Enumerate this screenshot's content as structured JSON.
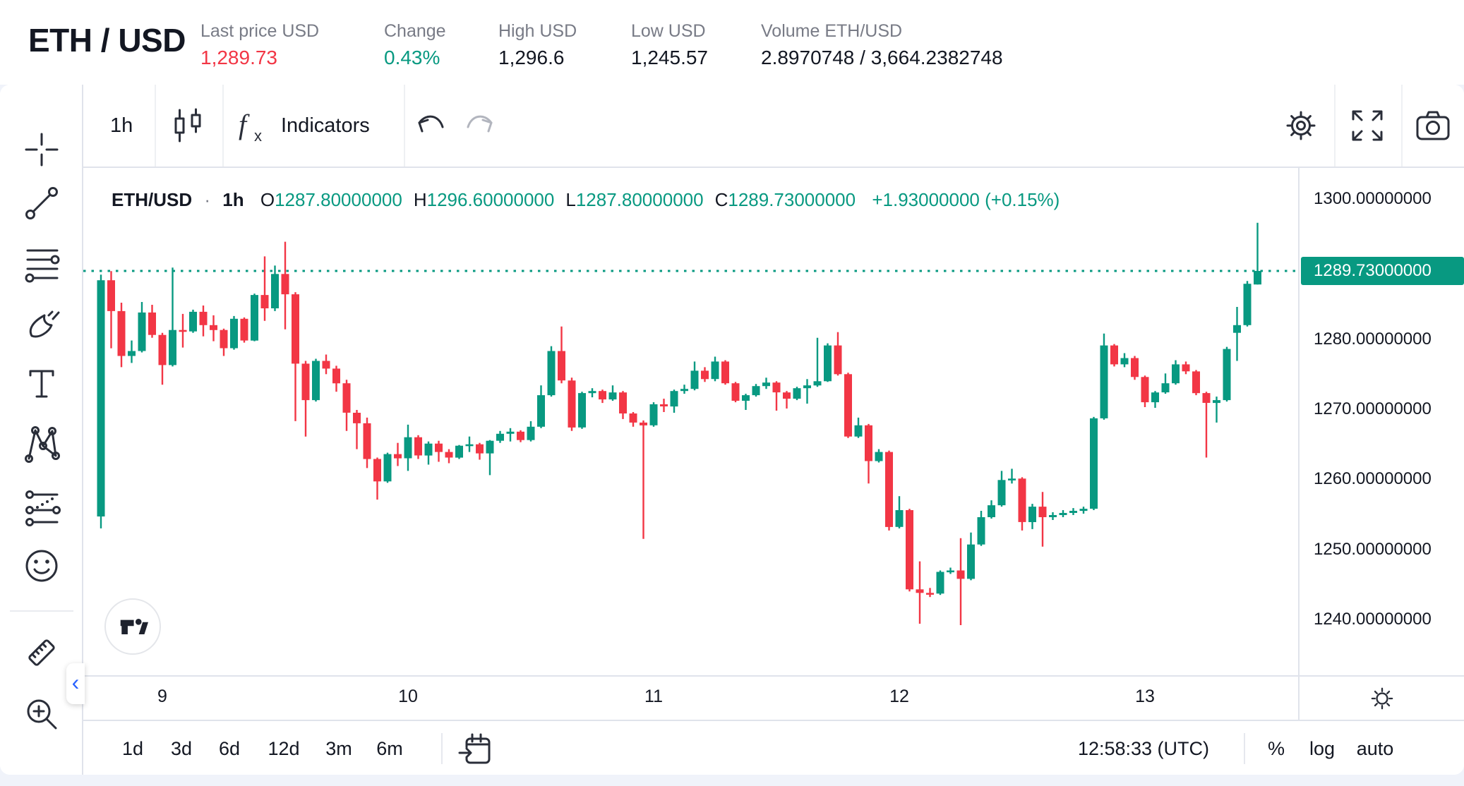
{
  "colors": {
    "up_green": "#089981",
    "down_red": "#f23645",
    "text_dark": "#131722",
    "text_gray": "#787b86",
    "text_disabled": "#b2b5be",
    "accent_blue": "#2962ff",
    "divider": "#e0e3eb",
    "page_background": "#f0f3fa",
    "last_price_badge_bg": "#089981"
  },
  "header": {
    "symbol": "ETH / USD",
    "stats": [
      {
        "label": "Last price USD",
        "value": "1,289.73",
        "tone": "red"
      },
      {
        "label": "Change",
        "value": "0.43%",
        "tone": "green"
      },
      {
        "label": "High USD",
        "value": "1,296.6",
        "tone": "dark"
      },
      {
        "label": "Low USD",
        "value": "1,245.57",
        "tone": "dark"
      },
      {
        "label": "Volume ETH/USD",
        "value": "2.8970748 / 3,664.2382748",
        "tone": "dark"
      }
    ]
  },
  "toolbar": {
    "interval_label": "1h",
    "indicators_label": "Indicators",
    "icons": [
      "candle-style-icon",
      "fx-icon",
      "undo-icon",
      "redo-icon",
      "settings-gear-icon",
      "fullscreen-icon",
      "camera-icon"
    ]
  },
  "sidebar_tools": [
    "crosshair",
    "trend-line",
    "horizontal-lines",
    "brush",
    "text",
    "xabcd-pattern",
    "projection",
    "emoji",
    "measure-ruler",
    "zoom-in"
  ],
  "legend": {
    "symbol": "ETH/USD",
    "separator": "·",
    "interval": "1h",
    "ohlc": [
      {
        "key": "O",
        "value": "1287.80000000"
      },
      {
        "key": "H",
        "value": "1296.60000000"
      },
      {
        "key": "L",
        "value": "1287.80000000"
      },
      {
        "key": "C",
        "value": "1289.73000000"
      }
    ],
    "change": "+1.93000000 (+0.15%)"
  },
  "price_axis": {
    "labels": [
      "1300.00000000",
      "1280.00000000",
      "1270.00000000",
      "1260.00000000",
      "1250.00000000",
      "1240.00000000"
    ],
    "label_prices": [
      1300,
      1280,
      1270,
      1260,
      1250,
      1240
    ],
    "last_price_label": "1289.73000000"
  },
  "time_axis": {
    "labels": [
      "9",
      "10",
      "11",
      "12",
      "13"
    ],
    "label_bar_index": [
      6,
      30,
      54,
      78,
      102
    ]
  },
  "bottom_toolbar": {
    "ranges": [
      "1d",
      "3d",
      "6d",
      "12d",
      "3m",
      "6m"
    ],
    "clock": "12:58:33 (UTC)",
    "scale_buttons": [
      "%",
      "log",
      "auto"
    ]
  },
  "chart_data": {
    "type": "candlestick",
    "symbol": "ETH/USD",
    "interval": "1h",
    "visible_price_range": [
      1232.0,
      1304.5
    ],
    "last_price": 1289.73,
    "last_price_line": true,
    "up_color": "#089981",
    "down_color": "#f23645",
    "candles": [
      [
        1254.7,
        1289.2,
        1253.0,
        1288.4
      ],
      [
        1288.4,
        1289.7,
        1278.7,
        1284.0
      ],
      [
        1284.0,
        1285.2,
        1276.0,
        1277.6
      ],
      [
        1277.6,
        1279.8,
        1276.6,
        1278.3
      ],
      [
        1278.3,
        1285.3,
        1278.1,
        1283.8
      ],
      [
        1283.8,
        1284.9,
        1280.2,
        1280.6
      ],
      [
        1280.6,
        1280.9,
        1273.5,
        1276.3
      ],
      [
        1276.3,
        1290.2,
        1276.1,
        1281.3
      ],
      [
        1281.3,
        1283.6,
        1278.8,
        1281.1
      ],
      [
        1281.1,
        1284.2,
        1280.9,
        1283.9
      ],
      [
        1283.9,
        1284.8,
        1280.4,
        1282.0
      ],
      [
        1282.0,
        1283.4,
        1279.7,
        1281.3
      ],
      [
        1281.3,
        1281.5,
        1277.6,
        1278.7
      ],
      [
        1278.7,
        1283.3,
        1278.5,
        1282.9
      ],
      [
        1282.9,
        1283.1,
        1279.5,
        1279.8
      ],
      [
        1279.8,
        1286.5,
        1279.7,
        1286.3
      ],
      [
        1286.3,
        1291.8,
        1282.6,
        1284.4
      ],
      [
        1284.4,
        1290.5,
        1284.0,
        1289.3
      ],
      [
        1289.3,
        1293.9,
        1281.4,
        1286.4
      ],
      [
        1286.4,
        1286.7,
        1268.3,
        1276.5
      ],
      [
        1276.5,
        1276.9,
        1266.1,
        1271.3
      ],
      [
        1271.3,
        1277.2,
        1271.1,
        1276.9
      ],
      [
        1276.9,
        1277.8,
        1275.0,
        1275.8
      ],
      [
        1275.8,
        1276.2,
        1272.5,
        1273.7
      ],
      [
        1273.7,
        1274.2,
        1266.9,
        1269.5
      ],
      [
        1269.5,
        1269.9,
        1264.3,
        1268.0
      ],
      [
        1268.0,
        1268.8,
        1261.6,
        1262.9
      ],
      [
        1262.9,
        1263.1,
        1257.1,
        1259.7
      ],
      [
        1259.7,
        1263.8,
        1259.5,
        1263.6
      ],
      [
        1263.6,
        1265.2,
        1261.9,
        1263.0
      ],
      [
        1263.0,
        1267.8,
        1261.2,
        1266.0
      ],
      [
        1266.0,
        1266.3,
        1262.9,
        1263.4
      ],
      [
        1263.4,
        1265.4,
        1262.1,
        1265.1
      ],
      [
        1265.1,
        1265.5,
        1262.5,
        1263.9
      ],
      [
        1263.9,
        1264.3,
        1262.3,
        1263.1
      ],
      [
        1263.1,
        1264.9,
        1262.9,
        1264.8
      ],
      [
        1264.8,
        1266.1,
        1263.9,
        1265.0
      ],
      [
        1265.0,
        1265.2,
        1262.8,
        1263.7
      ],
      [
        1263.7,
        1265.6,
        1260.6,
        1265.5
      ],
      [
        1265.5,
        1266.9,
        1265.2,
        1266.5
      ],
      [
        1266.5,
        1267.3,
        1265.4,
        1266.8
      ],
      [
        1266.8,
        1267.0,
        1265.3,
        1265.6
      ],
      [
        1265.6,
        1268.3,
        1265.4,
        1267.5
      ],
      [
        1267.5,
        1273.4,
        1267.3,
        1272.0
      ],
      [
        1272.0,
        1279.0,
        1271.8,
        1278.3
      ],
      [
        1278.3,
        1281.8,
        1273.7,
        1274.1
      ],
      [
        1274.1,
        1274.5,
        1266.9,
        1267.4
      ],
      [
        1267.4,
        1272.5,
        1267.2,
        1272.3
      ],
      [
        1272.3,
        1273.0,
        1271.7,
        1272.6
      ],
      [
        1272.6,
        1272.8,
        1270.9,
        1271.4
      ],
      [
        1271.4,
        1273.4,
        1271.2,
        1272.4
      ],
      [
        1272.4,
        1272.6,
        1268.6,
        1269.4
      ],
      [
        1269.4,
        1269.6,
        1267.5,
        1268.1
      ],
      [
        1268.1,
        1268.4,
        1251.5,
        1267.7
      ],
      [
        1267.7,
        1271.0,
        1267.5,
        1270.7
      ],
      [
        1270.7,
        1271.5,
        1269.6,
        1270.4
      ],
      [
        1270.4,
        1272.8,
        1269.5,
        1272.6
      ],
      [
        1272.6,
        1273.5,
        1272.2,
        1272.9
      ],
      [
        1272.9,
        1276.8,
        1272.7,
        1275.5
      ],
      [
        1275.5,
        1276.0,
        1273.9,
        1274.3
      ],
      [
        1274.3,
        1277.5,
        1274.0,
        1276.8
      ],
      [
        1276.8,
        1277.0,
        1273.5,
        1273.7
      ],
      [
        1273.7,
        1273.9,
        1271.0,
        1271.2
      ],
      [
        1271.2,
        1272.2,
        1269.9,
        1272.0
      ],
      [
        1272.0,
        1273.6,
        1271.8,
        1273.3
      ],
      [
        1273.3,
        1274.5,
        1272.9,
        1273.8
      ],
      [
        1273.8,
        1274.0,
        1269.8,
        1272.4
      ],
      [
        1272.4,
        1272.6,
        1270.1,
        1271.5
      ],
      [
        1271.5,
        1273.2,
        1271.3,
        1273.0
      ],
      [
        1273.0,
        1274.3,
        1270.8,
        1273.4
      ],
      [
        1273.4,
        1280.2,
        1273.2,
        1274.0
      ],
      [
        1274.0,
        1279.4,
        1273.9,
        1279.1
      ],
      [
        1279.1,
        1281.0,
        1274.8,
        1275.0
      ],
      [
        1275.0,
        1275.2,
        1265.9,
        1266.1
      ],
      [
        1266.1,
        1268.8,
        1265.9,
        1267.7
      ],
      [
        1267.7,
        1267.9,
        1259.4,
        1262.6
      ],
      [
        1262.6,
        1264.3,
        1262.4,
        1263.9
      ],
      [
        1263.9,
        1264.1,
        1252.7,
        1253.2
      ],
      [
        1253.2,
        1257.6,
        1253.0,
        1255.6
      ],
      [
        1255.6,
        1255.8,
        1244.0,
        1244.3
      ],
      [
        1244.3,
        1248.3,
        1239.4,
        1243.8
      ],
      [
        1243.8,
        1244.5,
        1243.2,
        1243.7
      ],
      [
        1243.7,
        1247.0,
        1243.5,
        1246.8
      ],
      [
        1246.8,
        1247.4,
        1246.5,
        1247.0
      ],
      [
        1247.0,
        1251.6,
        1239.2,
        1245.8
      ],
      [
        1245.8,
        1252.4,
        1245.6,
        1250.7
      ],
      [
        1250.7,
        1255.5,
        1250.5,
        1254.6
      ],
      [
        1254.6,
        1257.0,
        1254.4,
        1256.3
      ],
      [
        1256.3,
        1261.2,
        1256.1,
        1259.9
      ],
      [
        1259.9,
        1261.5,
        1259.4,
        1260.1
      ],
      [
        1260.1,
        1260.3,
        1252.7,
        1253.9
      ],
      [
        1253.9,
        1256.5,
        1252.9,
        1256.1
      ],
      [
        1256.1,
        1258.2,
        1250.4,
        1254.6
      ],
      [
        1254.6,
        1255.3,
        1254.2,
        1254.9
      ],
      [
        1254.9,
        1255.6,
        1254.6,
        1255.2
      ],
      [
        1255.2,
        1255.9,
        1254.9,
        1255.5
      ],
      [
        1255.5,
        1256.1,
        1255.1,
        1255.8
      ],
      [
        1255.8,
        1268.9,
        1255.6,
        1268.7
      ],
      [
        1268.7,
        1280.8,
        1268.5,
        1279.1
      ],
      [
        1279.1,
        1279.3,
        1276.1,
        1276.4
      ],
      [
        1276.4,
        1278.0,
        1276.0,
        1277.3
      ],
      [
        1277.3,
        1277.6,
        1274.2,
        1274.6
      ],
      [
        1274.6,
        1274.8,
        1270.3,
        1271.0
      ],
      [
        1271.0,
        1272.6,
        1270.2,
        1272.4
      ],
      [
        1272.4,
        1275.1,
        1272.2,
        1273.7
      ],
      [
        1273.7,
        1277.0,
        1273.5,
        1276.4
      ],
      [
        1276.4,
        1276.8,
        1275.0,
        1275.4
      ],
      [
        1275.4,
        1275.6,
        1272.0,
        1272.3
      ],
      [
        1272.3,
        1272.5,
        1263.1,
        1270.9
      ],
      [
        1270.9,
        1271.8,
        1268.1,
        1271.3
      ],
      [
        1271.3,
        1278.9,
        1271.1,
        1278.6
      ],
      [
        1280.9,
        1284.6,
        1276.9,
        1282.0
      ],
      [
        1282.0,
        1288.3,
        1281.8,
        1287.9
      ],
      [
        1287.8,
        1296.6,
        1287.8,
        1289.73
      ]
    ]
  }
}
